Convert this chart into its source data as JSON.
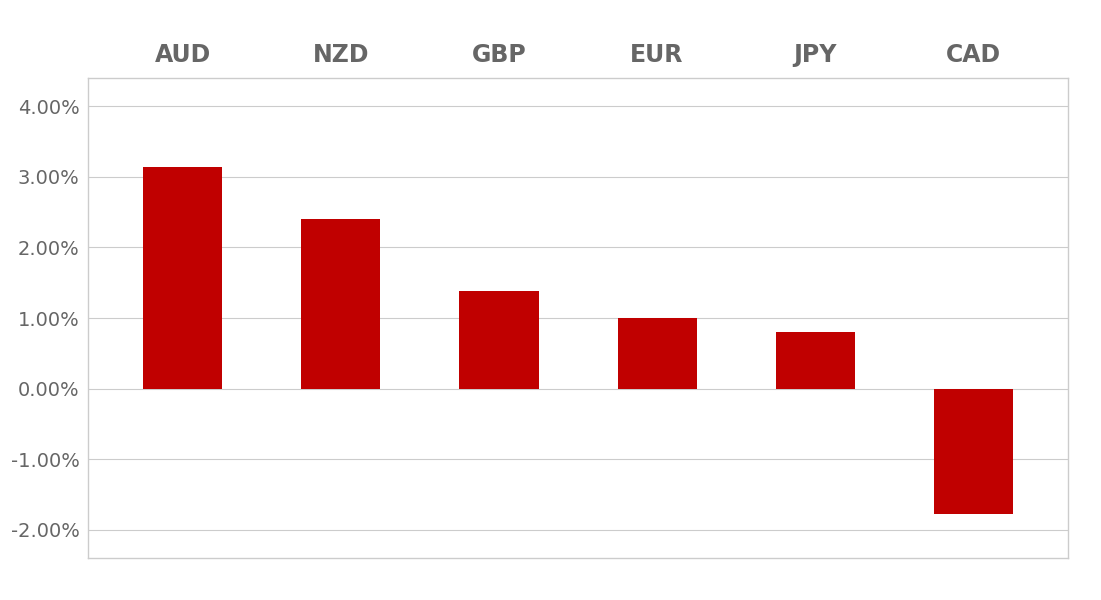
{
  "categories": [
    "AUD",
    "NZD",
    "GBP",
    "EUR",
    "JPY",
    "CAD"
  ],
  "values": [
    0.0314,
    0.024,
    0.0138,
    0.01,
    0.008,
    -0.0178
  ],
  "bar_color": "#C00000",
  "background_color": "#FFFFFF",
  "border_color": "#CCCCCC",
  "ylim": [
    -0.024,
    0.044
  ],
  "yticks": [
    -0.02,
    -0.01,
    0.0,
    0.01,
    0.02,
    0.03,
    0.04
  ],
  "grid_color": "#CCCCCC",
  "label_fontsize": 17,
  "tick_fontsize": 14,
  "bar_width": 0.5,
  "tick_color": "#666666"
}
